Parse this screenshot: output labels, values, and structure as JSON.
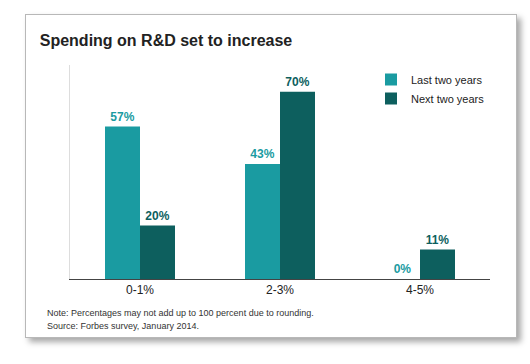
{
  "chart_data": {
    "type": "bar",
    "title": "Spending on R&D set to increase",
    "categories": [
      "0-1%",
      "2-3%",
      "4-5%"
    ],
    "series": [
      {
        "name": "Last two years",
        "color": "#1a9ba1",
        "values": [
          57,
          43,
          0
        ],
        "value_labels": [
          "57%",
          "43%",
          "0%"
        ]
      },
      {
        "name": "Next two years",
        "color": "#0d5f5e",
        "values": [
          20,
          70,
          11
        ],
        "value_labels": [
          "20%",
          "70%",
          "11%"
        ]
      }
    ],
    "ylim": [
      0,
      80
    ],
    "data_labels": true,
    "tick_labels": "x",
    "grid": false,
    "legend": "upper right",
    "annotations": [
      "Note: Percentages may not add up to 100 percent due to rounding.",
      "Source: Forbes survey, January 2014."
    ]
  }
}
